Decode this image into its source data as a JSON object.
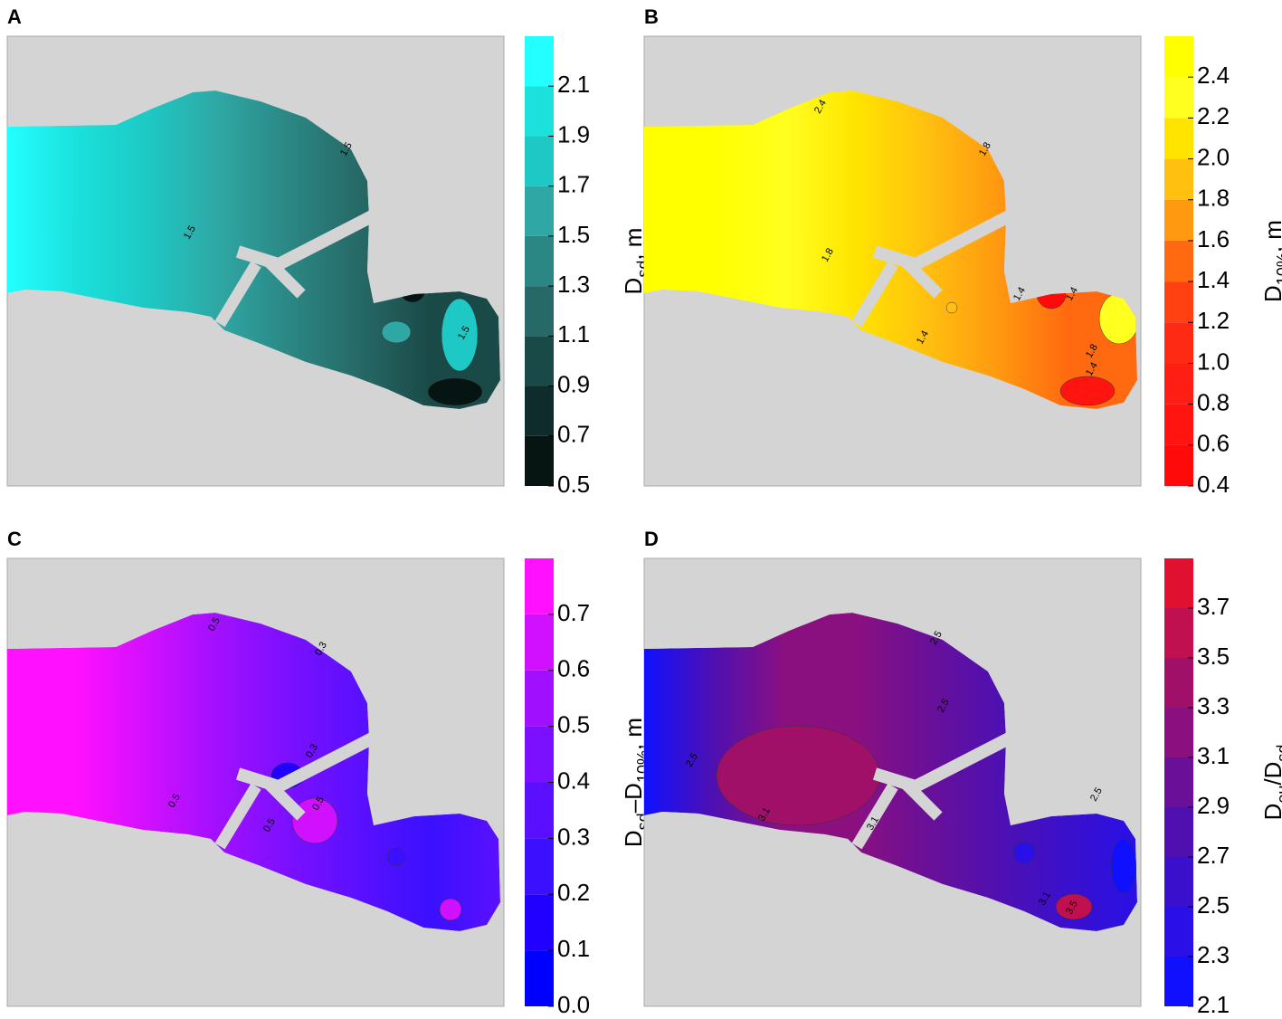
{
  "chart_data": [
    {
      "type": "contour",
      "title": "A",
      "colorbar_label": [
        "D",
        "sd",
        ", m"
      ],
      "ylim": [
        0.5,
        2.3
      ],
      "yticks": [
        0.5,
        0.7,
        0.9,
        1.1,
        1.3,
        1.5,
        1.7,
        1.9,
        2.1
      ],
      "colors": [
        "#061412",
        "#0f2b2b",
        "#1a4a48",
        "#266966",
        "#2b8784",
        "#2fa7a4",
        "#1ec8c4",
        "#1be0dc",
        "#23ffff"
      ],
      "contour_labels": [
        1.5,
        1.5,
        1.5
      ]
    },
    {
      "type": "contour",
      "title": "B",
      "colorbar_label": [
        "D",
        "10%",
        ", m"
      ],
      "ylim": [
        0.4,
        2.6
      ],
      "yticks": [
        0.4,
        0.6,
        0.8,
        {
          "value": 1,
          "label": "1.0"
        },
        1.2,
        1.4,
        1.6,
        1.8,
        {
          "value": 2,
          "label": "2.0"
        },
        2.2,
        2.4
      ],
      "colors": [
        "#ff0a0a",
        "#ff1410",
        "#ff1e14",
        "#ff2a14",
        "#ff4010",
        "#ff6a10",
        "#ff9a10",
        "#ffc010",
        "#ffe400",
        "#ffff20",
        "#ffff00"
      ],
      "contour_labels": [
        2.4,
        1.8,
        1.8,
        1.4,
        1.4,
        1.4,
        1.8,
        1.4
      ]
    },
    {
      "type": "contour",
      "title": "C",
      "colorbar_label": [
        "D",
        "sd",
        "–D",
        "10%",
        ", m"
      ],
      "ylim": [
        0,
        0.8
      ],
      "yticks": [
        {
          "value": 0,
          "label": "0.0"
        },
        0.1,
        0.2,
        0.3,
        0.4,
        0.5,
        0.6,
        0.7
      ],
      "colors": [
        "#0000ff",
        "#2200ff",
        "#3a10ff",
        "#5a10ff",
        "#7a10ff",
        "#a010ff",
        "#d010ff",
        "#ff10ff"
      ],
      "contour_labels": [
        0.5,
        0.3,
        0.3,
        0.5,
        0.5,
        0.5
      ]
    },
    {
      "type": "contour",
      "title": "D",
      "colorbar_label": [
        "D",
        "eu",
        "/D",
        "sd"
      ],
      "ylim": [
        2.1,
        3.9
      ],
      "yticks": [
        2.1,
        2.3,
        2.5,
        2.7,
        2.9,
        3.1,
        3.3,
        3.5,
        3.7
      ],
      "colors": [
        "#1010ff",
        "#2a10e6",
        "#3a10cc",
        "#5010b0",
        "#6a1098",
        "#8a1080",
        "#a01068",
        "#c01050",
        "#e01030"
      ],
      "contour_labels": [
        2.5,
        2.5,
        2.5,
        3.1,
        3.1,
        2.5,
        3.1,
        3.5
      ]
    }
  ]
}
